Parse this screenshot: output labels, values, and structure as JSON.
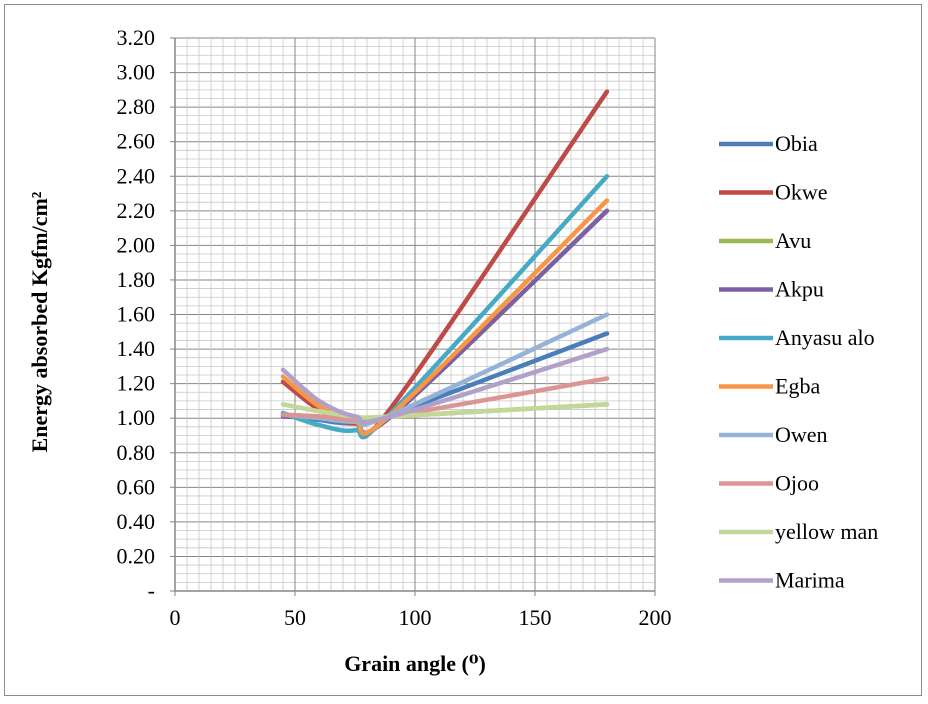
{
  "chart_data": {
    "type": "line",
    "title": "",
    "xlabel": "Grain angle (⁰)",
    "ylabel": "Energy absorbed Kgfm/cm²",
    "xlim": [
      0,
      200
    ],
    "ylim": [
      0,
      3.2
    ],
    "x_ticks": [
      "0",
      "50",
      "100",
      "150",
      "200"
    ],
    "y_ticks": [
      "-",
      "0.20",
      "0.40",
      "0.60",
      "0.80",
      "1.00",
      "1.20",
      "1.40",
      "1.60",
      "1.80",
      "2.00",
      "2.20",
      "2.40",
      "2.60",
      "2.80",
      "3.00",
      "3.20"
    ],
    "grid": true,
    "legend_position": "right",
    "x": [
      45,
      60,
      75,
      90,
      180
    ],
    "series": [
      {
        "name": "Obia",
        "color": "#4a7ebb",
        "values": [
          1.02,
          0.99,
          0.97,
          1.02,
          1.49
        ]
      },
      {
        "name": "Okwe",
        "color": "#be4b48",
        "values": [
          1.21,
          1.05,
          0.97,
          1.06,
          2.89
        ]
      },
      {
        "name": "Avu",
        "color": "#98b954",
        "values": [
          1.02,
          1.01,
          1.0,
          1.01,
          1.08
        ]
      },
      {
        "name": "Akpu",
        "color": "#7d60a0",
        "values": [
          1.01,
          1.0,
          0.99,
          1.01,
          2.2
        ]
      },
      {
        "name": "Anyasu alo",
        "color": "#46aac5",
        "values": [
          1.03,
          0.96,
          0.93,
          1.03,
          2.4
        ]
      },
      {
        "name": "Egba",
        "color": "#f79646",
        "values": [
          1.24,
          1.07,
          0.98,
          1.02,
          2.26
        ]
      },
      {
        "name": "Owen",
        "color": "#95b3d7",
        "values": [
          1.02,
          1.0,
          0.98,
          1.02,
          1.6
        ]
      },
      {
        "name": "Ojoo",
        "color": "#da9694",
        "values": [
          1.02,
          1.01,
          0.99,
          1.01,
          1.23
        ]
      },
      {
        "name": "yellow man",
        "color": "#c4d79b",
        "values": [
          1.08,
          1.04,
          1.01,
          1.01,
          1.08
        ]
      },
      {
        "name": "Marima",
        "color": "#b1a0c7",
        "values": [
          1.28,
          1.1,
          1.01,
          1.01,
          1.4
        ]
      }
    ]
  }
}
